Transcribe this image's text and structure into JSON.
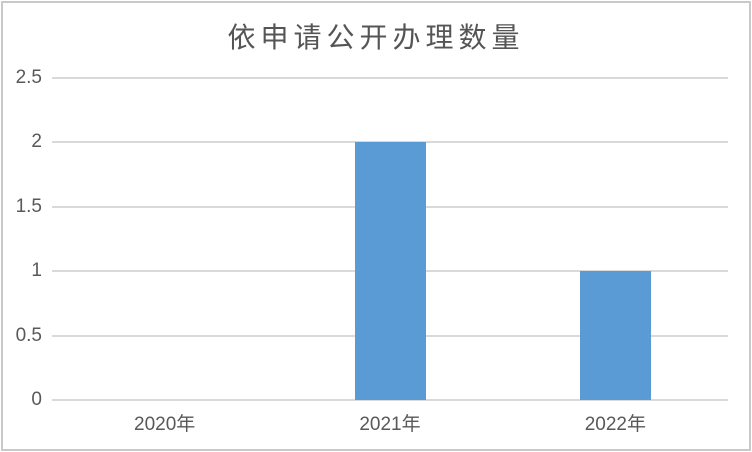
{
  "chart_data": {
    "type": "bar",
    "title": "依申请公开办理数量",
    "categories": [
      "2020年",
      "2021年",
      "2022年"
    ],
    "values": [
      0,
      2,
      1
    ],
    "xlabel": "",
    "ylabel": "",
    "ylim": [
      0,
      2.5
    ],
    "yticks": [
      0,
      0.5,
      1,
      1.5,
      2,
      2.5
    ],
    "grid": true,
    "legend": false,
    "colors": {
      "bar": "#5b9bd5",
      "gridline": "#d9d9d9",
      "tick_label": "#595959",
      "title": "#555555",
      "frame_border": "#c9c9c9",
      "background": "#ffffff"
    }
  }
}
